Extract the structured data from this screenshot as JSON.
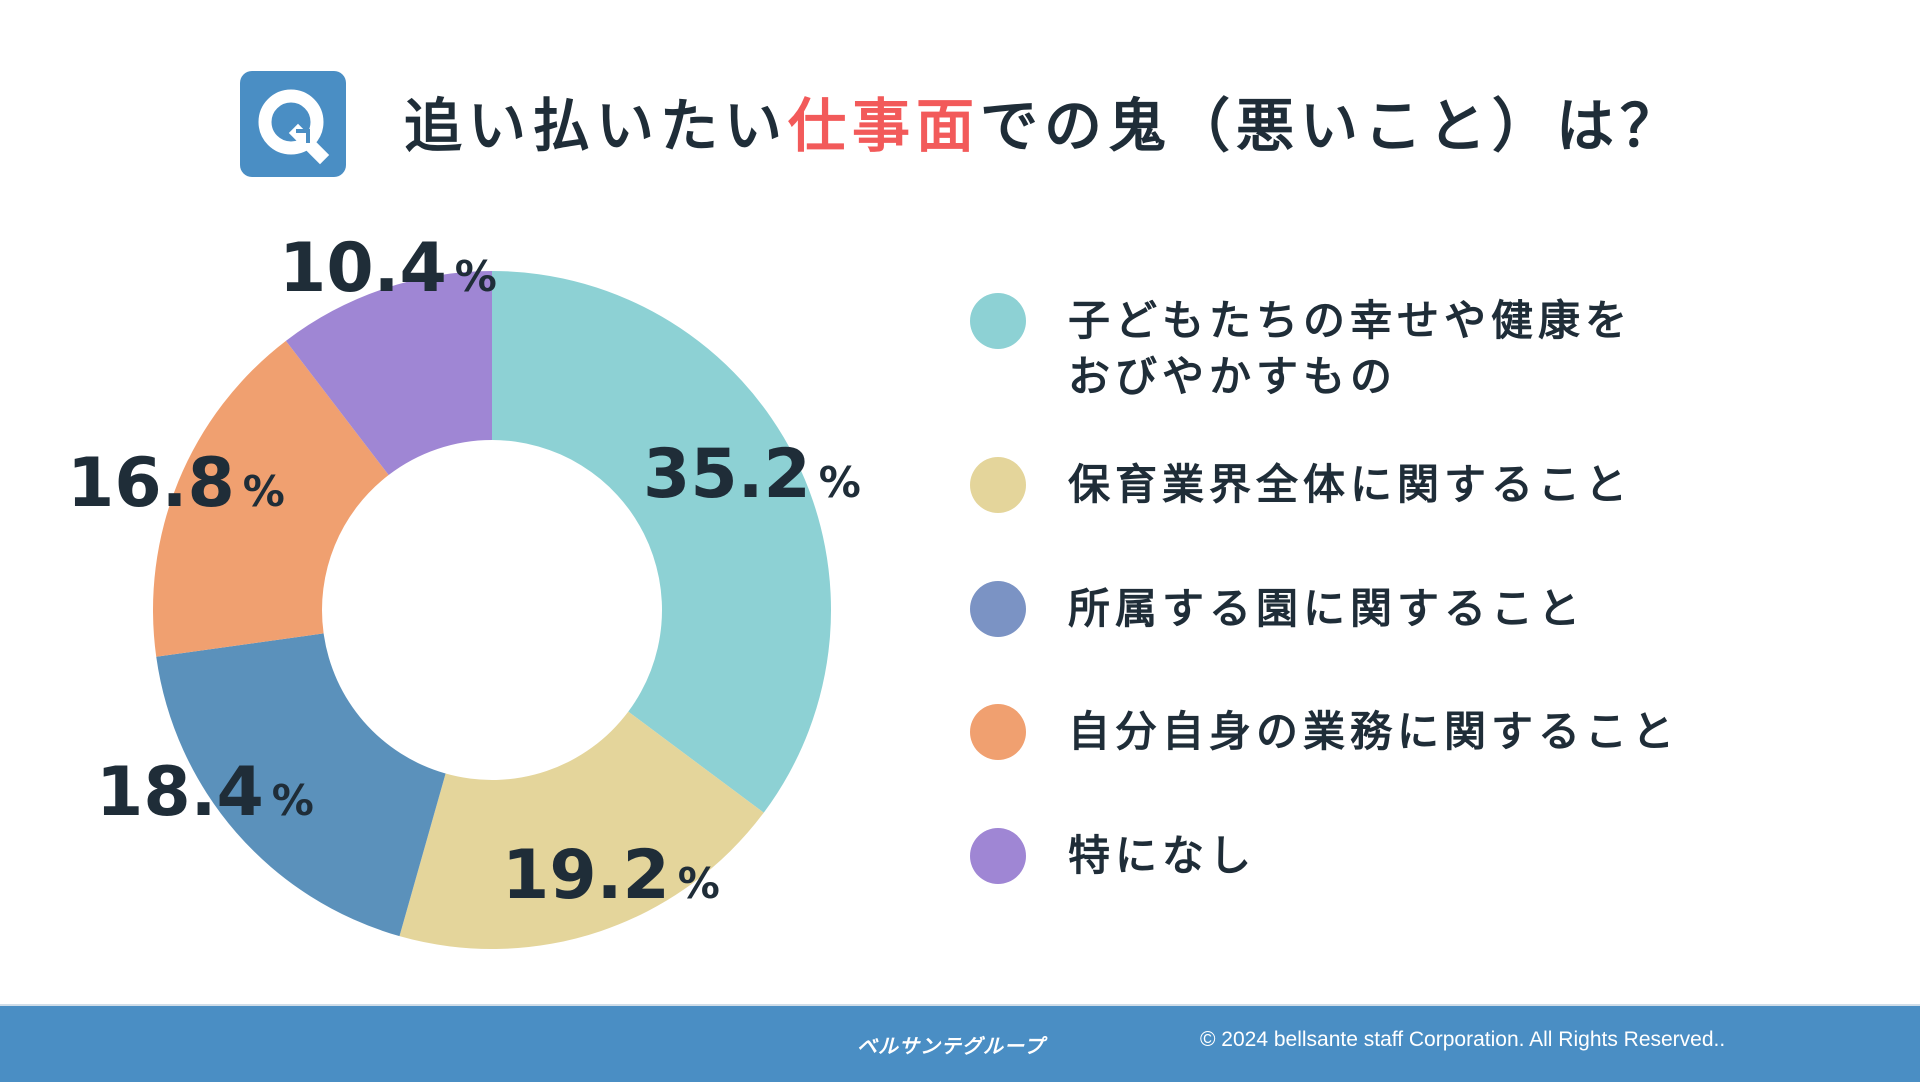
{
  "header": {
    "title_pre": "追い払いたい",
    "title_highlight": "仕事面",
    "title_post": "での鬼（悪いこと）は？",
    "icon": "q-icon",
    "highlight_color": "#f25a5a"
  },
  "chart_data": {
    "type": "pie",
    "donut": true,
    "title": "追い払いたい仕事面での鬼（悪いこと）は？",
    "categories": [
      "子どもたちの幸せや健康をおびやかすもの",
      "保育業界全体に関すること",
      "所属する園に関すること",
      "自分自身の業務に関すること",
      "特になし"
    ],
    "values": [
      35.2,
      19.2,
      18.4,
      16.8,
      10.4
    ],
    "value_labels": [
      "35.2",
      "19.2",
      "18.4",
      "16.8",
      "10.4"
    ],
    "unit": "%",
    "slice_colors": [
      "#8dd1d4",
      "#e4d59b",
      "#5b91bb",
      "#f0a070",
      "#9f86d4"
    ],
    "legend_colors": [
      "#8dd1d4",
      "#e4d59b",
      "#7b93c4",
      "#f0a070",
      "#9f86d4"
    ],
    "legend_placement": "right"
  },
  "legend": {
    "items": [
      {
        "line1": "子どもたちの幸せや健康を",
        "line2": "おびやかすもの"
      },
      {
        "line1": "保育業界全体に関すること"
      },
      {
        "line1": "所属する園に関すること"
      },
      {
        "line1": "自分自身の業務に関すること"
      },
      {
        "line1": "特になし"
      }
    ]
  },
  "footer": {
    "logo": "ベルサンテグループ",
    "copyright": "© 2024 bellsante staff Corporation. All Rights Reserved.."
  }
}
